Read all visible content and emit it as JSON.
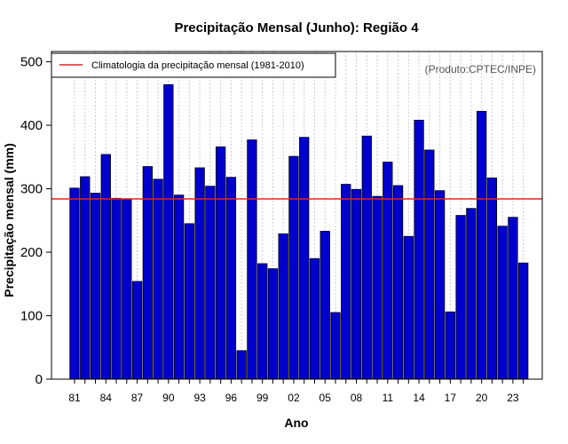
{
  "chart_data": {
    "type": "bar",
    "title": "Precipitação Mensal (Junho): Região 4",
    "xlabel": "Ano",
    "ylabel": "Precipitação mensal (mm)",
    "ylim": [
      0,
      520
    ],
    "yticks": [
      0,
      100,
      200,
      300,
      400,
      500
    ],
    "credit": "(Produto:CPTEC/INPE)",
    "legend": {
      "label": "Climatologia da precipitação mensal (1981-2010)",
      "position": "top-left"
    },
    "climatology": 284,
    "categories": [
      "81",
      "82",
      "83",
      "84",
      "85",
      "86",
      "87",
      "88",
      "89",
      "90",
      "91",
      "92",
      "93",
      "94",
      "95",
      "96",
      "97",
      "98",
      "99",
      "00",
      "01",
      "02",
      "03",
      "04",
      "05",
      "06",
      "07",
      "08",
      "09",
      "10",
      "11",
      "12",
      "13",
      "14",
      "15",
      "16",
      "17",
      "18",
      "19",
      "20",
      "21",
      "22",
      "23",
      "24"
    ],
    "xtick_labels": [
      "81",
      "84",
      "87",
      "90",
      "93",
      "96",
      "99",
      "02",
      "05",
      "08",
      "11",
      "14",
      "17",
      "20",
      "23"
    ],
    "values": [
      301,
      319,
      293,
      354,
      285,
      283,
      154,
      335,
      315,
      464,
      290,
      245,
      333,
      304,
      366,
      318,
      45,
      377,
      182,
      174,
      229,
      351,
      381,
      190,
      233,
      105,
      307,
      299,
      383,
      288,
      342,
      305,
      225,
      408,
      361,
      297,
      106,
      258,
      269,
      422,
      317,
      241,
      255,
      183
    ],
    "colors": {
      "bar": "#0000cd",
      "bar_stroke": "#000000",
      "climatology_line": "#e8231f",
      "grid": "#cccccc"
    }
  }
}
